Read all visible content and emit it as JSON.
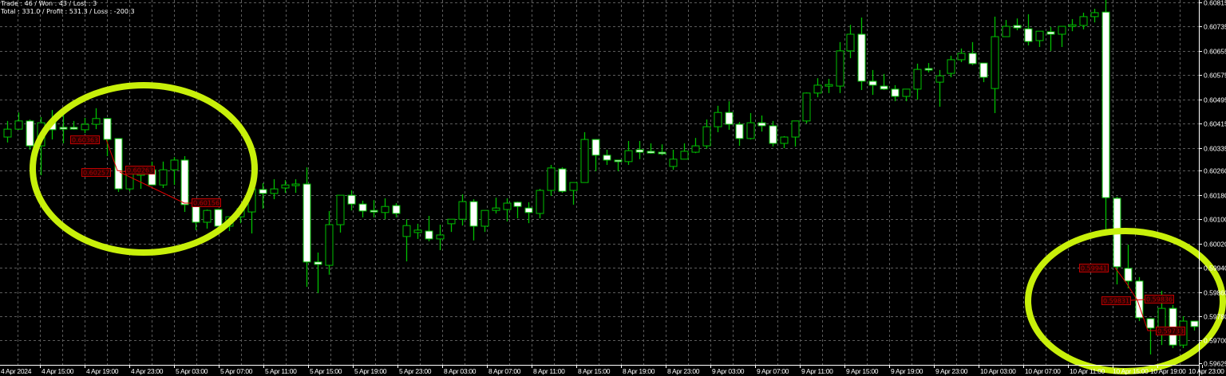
{
  "stats": {
    "line1": "Trade : 46 / Won : 43 / Lost : 3",
    "line2": "Total : 331.0 / Profit : 531.3 / Loss : -200.3"
  },
  "colors": {
    "background": "#000000",
    "candle_outline": "#00c000",
    "bear_fill": "#ffffff",
    "bull_fill": "#000000",
    "grid": "#5c5c5c",
    "trade_marker": "#c00000",
    "highlight_ellipse": "#c8f00a"
  },
  "chart_data": {
    "type": "candlestick",
    "ylim": [
      0.59625,
      0.60815
    ],
    "grid": true,
    "y_ticks": [
      "0.60815",
      "0.60735",
      "0.60655",
      "0.60575",
      "0.60495",
      "0.60415",
      "0.60335",
      "0.60260",
      "0.60180",
      "0.60100",
      "0.60020",
      "0.59940",
      "0.59860",
      "0.59780",
      "0.59700",
      "0.59625"
    ],
    "x_ticks": [
      "4 Apr 2024",
      "4 Apr 15:00",
      "4 Apr 19:00",
      "4 Apr 23:00",
      "5 Apr 03:00",
      "5 Apr 07:00",
      "5 Apr 11:00",
      "5 Apr 15:00",
      "5 Apr 19:00",
      "5 Apr 23:00",
      "8 Apr 03:00",
      "8 Apr 07:00",
      "8 Apr 11:00",
      "8 Apr 15:00",
      "8 Apr 19:00",
      "8 Apr 23:00",
      "9 Apr 03:00",
      "9 Apr 07:00",
      "9 Apr 11:00",
      "9 Apr 15:00",
      "9 Apr 19:00",
      "9 Apr 23:00",
      "10 Apr 03:00",
      "10 Apr 07:00",
      "10 Apr 11:00",
      "10 Apr 15:00",
      "10 Apr 19:00",
      "10 Apr 23:00"
    ],
    "ohlc_fields": [
      "open",
      "high",
      "low",
      "close"
    ],
    "candles": [
      [
        0.60371,
        0.60424,
        0.60353,
        0.60397
      ],
      [
        0.60397,
        0.60452,
        0.60395,
        0.60424
      ],
      [
        0.60424,
        0.60429,
        0.60329,
        0.60342
      ],
      [
        0.60342,
        0.60437,
        0.60245,
        0.60418
      ],
      [
        0.60421,
        0.6046,
        0.60363,
        0.60395
      ],
      [
        0.60403,
        0.60447,
        0.6035,
        0.60397
      ],
      [
        0.60403,
        0.60424,
        0.60395,
        0.60397
      ],
      [
        0.60395,
        0.60434,
        0.60384,
        0.60413
      ],
      [
        0.60413,
        0.60466,
        0.60397,
        0.60432
      ],
      [
        0.60432,
        0.60434,
        0.60308,
        0.60363
      ],
      [
        0.60366,
        0.60366,
        0.6019,
        0.602
      ],
      [
        0.602,
        0.60271,
        0.60192,
        0.60258
      ],
      [
        0.60245,
        0.60276,
        0.602,
        0.60269
      ],
      [
        0.60263,
        0.6029,
        0.60213,
        0.60213
      ],
      [
        0.60213,
        0.6029,
        0.60203,
        0.60263
      ],
      [
        0.60263,
        0.60305,
        0.60213,
        0.60295
      ],
      [
        0.60295,
        0.60308,
        0.60124,
        0.60148
      ],
      [
        0.60153,
        0.60166,
        0.60064,
        0.6009
      ],
      [
        0.6009,
        0.60132,
        0.60069,
        0.60129
      ],
      [
        0.60132,
        0.60134,
        0.60077,
        0.60077
      ],
      [
        0.60077,
        0.60108,
        0.60061,
        0.60108
      ],
      [
        0.60108,
        0.60145,
        0.60087,
        0.60135
      ],
      [
        0.60124,
        0.60219,
        0.60053,
        0.602
      ],
      [
        0.60198,
        0.60219,
        0.60135,
        0.60185
      ],
      [
        0.60185,
        0.60232,
        0.60166,
        0.602
      ],
      [
        0.60203,
        0.60229,
        0.60187,
        0.60213
      ],
      [
        0.60213,
        0.60232,
        0.60187,
        0.60216
      ],
      [
        0.60216,
        0.60271,
        0.59877,
        0.59959
      ],
      [
        0.59959,
        0.5999,
        0.59856,
        0.59951
      ],
      [
        0.59948,
        0.60127,
        0.59917,
        0.60082
      ],
      [
        0.60082,
        0.60179,
        0.60056,
        0.60179
      ],
      [
        0.60179,
        0.60195,
        0.60129,
        0.6015
      ],
      [
        0.6015,
        0.60161,
        0.60106,
        0.60127
      ],
      [
        0.60129,
        0.60163,
        0.60106,
        0.60124
      ],
      [
        0.60122,
        0.60169,
        0.601,
        0.60142
      ],
      [
        0.60145,
        0.60153,
        0.60106,
        0.60119
      ],
      [
        0.60043,
        0.601,
        0.59961,
        0.60079
      ],
      [
        0.60056,
        0.60085,
        0.60035,
        0.60064
      ],
      [
        0.60061,
        0.60111,
        0.60027,
        0.60035
      ],
      [
        0.60035,
        0.60082,
        0.59998,
        0.60048
      ],
      [
        0.60085,
        0.601,
        0.60058,
        0.601
      ],
      [
        0.601,
        0.60182,
        0.60079,
        0.60158
      ],
      [
        0.60158,
        0.60166,
        0.6003,
        0.60077
      ],
      [
        0.60077,
        0.60129,
        0.60058,
        0.60129
      ],
      [
        0.60129,
        0.60171,
        0.60119,
        0.60137
      ],
      [
        0.60132,
        0.60169,
        0.60093,
        0.60153
      ],
      [
        0.60156,
        0.60158,
        0.60103,
        0.60142
      ],
      [
        0.60137,
        0.60156,
        0.60087,
        0.60122
      ],
      [
        0.60119,
        0.602,
        0.60103,
        0.60195
      ],
      [
        0.60195,
        0.60279,
        0.60177,
        0.60269
      ],
      [
        0.60266,
        0.60271,
        0.60187,
        0.60192
      ],
      [
        0.60195,
        0.60221,
        0.60148,
        0.60221
      ],
      [
        0.60221,
        0.60387,
        0.60221,
        0.60363
      ],
      [
        0.60363,
        0.60363,
        0.60258,
        0.60311
      ],
      [
        0.60311,
        0.60329,
        0.60279,
        0.60295
      ],
      [
        0.60295,
        0.60295,
        0.60258,
        0.6029
      ],
      [
        0.6029,
        0.60358,
        0.60279,
        0.60326
      ],
      [
        0.60329,
        0.60358,
        0.60298,
        0.60321
      ],
      [
        0.60324,
        0.6035,
        0.60316,
        0.60318
      ],
      [
        0.60321,
        0.60347,
        0.60311,
        0.60316
      ],
      [
        0.60274,
        0.60329,
        0.60263,
        0.60298
      ],
      [
        0.60298,
        0.6035,
        0.60298,
        0.60324
      ],
      [
        0.60321,
        0.60368,
        0.60318,
        0.60342
      ],
      [
        0.60342,
        0.60429,
        0.60332,
        0.60405
      ],
      [
        0.60405,
        0.60474,
        0.60387,
        0.60452
      ],
      [
        0.60452,
        0.60489,
        0.60395,
        0.60413
      ],
      [
        0.60413,
        0.60421,
        0.60342,
        0.60366
      ],
      [
        0.60366,
        0.6045,
        0.60363,
        0.60418
      ],
      [
        0.60418,
        0.60442,
        0.60389,
        0.60408
      ],
      [
        0.60408,
        0.60424,
        0.6034,
        0.6035
      ],
      [
        0.6035,
        0.60374,
        0.60334,
        0.60371
      ],
      [
        0.60371,
        0.60424,
        0.6034,
        0.60424
      ],
      [
        0.60424,
        0.60518,
        0.60416,
        0.60516
      ],
      [
        0.60516,
        0.60565,
        0.60502,
        0.60542
      ],
      [
        0.60539,
        0.60563,
        0.60516,
        0.60544
      ],
      [
        0.60539,
        0.60684,
        0.60516,
        0.60655
      ],
      [
        0.60655,
        0.60741,
        0.60631,
        0.6071
      ],
      [
        0.6071,
        0.60765,
        0.60526,
        0.60555
      ],
      [
        0.60555,
        0.60592,
        0.6051,
        0.60542
      ],
      [
        0.60539,
        0.60579,
        0.60526,
        0.60529
      ],
      [
        0.60529,
        0.60542,
        0.60489,
        0.60505
      ],
      [
        0.60505,
        0.60529,
        0.60489,
        0.60529
      ],
      [
        0.60529,
        0.60613,
        0.60494,
        0.60594
      ],
      [
        0.60597,
        0.60615,
        0.60584,
        0.60592
      ],
      [
        0.60552,
        0.60592,
        0.60471,
        0.60573
      ],
      [
        0.60581,
        0.60639,
        0.60568,
        0.60626
      ],
      [
        0.60626,
        0.60663,
        0.60618,
        0.60647
      ],
      [
        0.60647,
        0.60684,
        0.60608,
        0.60613
      ],
      [
        0.60615,
        0.60615,
        0.60552,
        0.60568
      ],
      [
        0.60531,
        0.60768,
        0.6045,
        0.60702
      ],
      [
        0.60702,
        0.60757,
        0.60702,
        0.60736
      ],
      [
        0.60739,
        0.60762,
        0.60723,
        0.60731
      ],
      [
        0.60728,
        0.60776,
        0.60673,
        0.60686
      ],
      [
        0.60689,
        0.6072,
        0.60668,
        0.6072
      ],
      [
        0.60718,
        0.60734,
        0.60655,
        0.6071
      ],
      [
        0.6071,
        0.60736,
        0.60668,
        0.60736
      ],
      [
        0.60736,
        0.6076,
        0.6072,
        0.60741
      ],
      [
        0.60739,
        0.60781,
        0.60726,
        0.60768
      ],
      [
        0.60768,
        0.60794,
        0.60749,
        0.60781
      ],
      [
        0.60783,
        0.60836,
        0.60048,
        0.60171
      ],
      [
        0.60169,
        0.60174,
        0.59885,
        0.59943
      ],
      [
        0.59938,
        0.60016,
        0.59872,
        0.59896
      ],
      [
        0.59896,
        0.59909,
        0.59764,
        0.59775
      ],
      [
        0.59772,
        0.59772,
        0.59654,
        0.59741
      ],
      [
        0.59741,
        0.59864,
        0.59685,
        0.59806
      ],
      [
        0.59806,
        0.59817,
        0.59675,
        0.59685
      ],
      [
        0.59685,
        0.5978,
        0.59675,
        0.59764
      ],
      [
        0.59764,
        0.59764,
        0.59733,
        0.59746
      ]
    ],
    "trade_labels": [
      "0.60363",
      "0.60257",
      "0.60263",
      "0.60156",
      "0.59941",
      "0.59831",
      "0.59836",
      "0.59733"
    ]
  }
}
